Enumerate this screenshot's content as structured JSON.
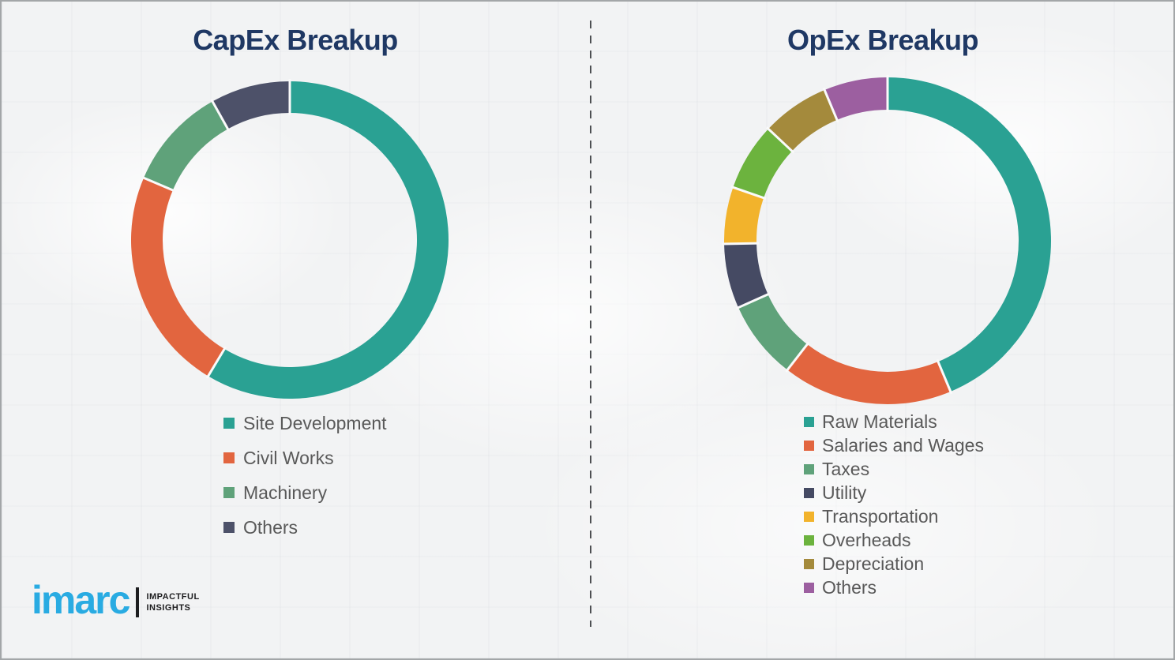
{
  "colors": {
    "background": "#f2f3f4",
    "page_border": "#a3a6a8",
    "title_navy": "#1f3864",
    "legend_text": "#595959",
    "divider_gray": "#4d4f52",
    "segment_gap": "#fafafa",
    "brand_blue": "#29abe2",
    "tagline_black": "#1d1d1f"
  },
  "chart_data": [
    {
      "type": "donut",
      "title": "CapEx Breakup",
      "start_angle_deg": 0,
      "direction": "clockwise",
      "legend_position": "below-left",
      "unit": "%",
      "segments": [
        {
          "label": "Site Development",
          "value": 58.6,
          "color": "#2aa193"
        },
        {
          "label": "Civil Works",
          "value": 22.8,
          "color": "#e2653f"
        },
        {
          "label": "Machinery",
          "value": 10.5,
          "color": "#5fa27a"
        },
        {
          "label": "Others",
          "value": 8.1,
          "color": "#4d5169"
        }
      ]
    },
    {
      "type": "donut",
      "title": "OpEx Breakup",
      "start_angle_deg": 0,
      "direction": "clockwise",
      "legend_position": "below-left",
      "unit": "%",
      "segments": [
        {
          "label": "Raw Materials",
          "value": 43.7,
          "color": "#2aa193"
        },
        {
          "label": "Salaries and Wages",
          "value": 16.8,
          "color": "#e2653f"
        },
        {
          "label": "Taxes",
          "value": 7.8,
          "color": "#5fa27a"
        },
        {
          "label": "Utility",
          "value": 6.4,
          "color": "#454a63"
        },
        {
          "label": "Transportation",
          "value": 5.6,
          "color": "#f2b32c"
        },
        {
          "label": "Overheads",
          "value": 6.7,
          "color": "#6cb33e"
        },
        {
          "label": "Depreciation",
          "value": 6.7,
          "color": "#a48a3c"
        },
        {
          "label": "Others",
          "value": 6.3,
          "color": "#9c5fa0"
        }
      ]
    }
  ],
  "logo": {
    "brand": "imarc",
    "tagline_line1": "IMPACTFUL",
    "tagline_line2": "INSIGHTS"
  }
}
